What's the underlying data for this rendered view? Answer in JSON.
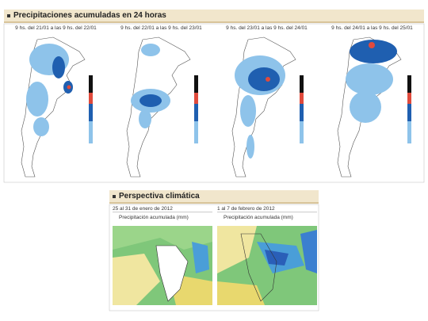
{
  "header": {
    "title": "Precipitaciones acumuladas en 24 horas"
  },
  "panels": [
    {
      "label": "9 hs. del 21/01 a las 9 hs. del 22/01"
    },
    {
      "label": "9 hs. del 22/01 a las 9 hs. del 23/01"
    },
    {
      "label": "9 hs. del 23/01 a las 9 hs. del 24/01"
    },
    {
      "label": "9 hs. del 24/01 a las 9 hs. del 25/01"
    }
  ],
  "outlook": {
    "title": "Perspectiva climática",
    "panels": [
      {
        "period": "25 al 31 de enero de 2012",
        "caption": "Precipitación acumulada (mm)"
      },
      {
        "period": "1 al 7 de febrero de 2012",
        "caption": "Precipitación acumulada (mm)"
      }
    ]
  }
}
